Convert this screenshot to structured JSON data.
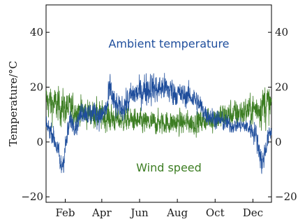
{
  "chart_data": {
    "type": "line",
    "title": "",
    "ylabel": "Temperature/°C",
    "xlabel": "",
    "ylim": [
      -22,
      50
    ],
    "xlim": [
      1,
      365
    ],
    "yticks": [
      -20,
      0,
      20,
      40
    ],
    "ytick_labels": [
      "−20",
      "0",
      "20",
      "40"
    ],
    "xticks": [
      {
        "label": "Feb",
        "day": 32
      },
      {
        "label": "Apr",
        "day": 91
      },
      {
        "label": "Jun",
        "day": 152
      },
      {
        "label": "Aug",
        "day": 213
      },
      {
        "label": "Oct",
        "day": 274
      },
      {
        "label": "Dec",
        "day": 335
      }
    ],
    "grid": false,
    "colors": {
      "ambient": "#1f4e9c",
      "wind": "#3c7d22",
      "axis": "#000000"
    },
    "annotations": [
      {
        "text": "Ambient temperature",
        "series": "ambient"
      },
      {
        "text": "Wind speed",
        "series": "wind"
      }
    ],
    "series": [
      {
        "key": "ambient",
        "x": [
          1,
          10,
          20,
          25,
          30,
          40,
          50,
          60,
          70,
          80,
          90,
          100,
          105,
          110,
          120,
          130,
          140,
          150,
          160,
          170,
          180,
          190,
          200,
          210,
          220,
          230,
          240,
          250,
          260,
          270,
          280,
          290,
          300,
          310,
          320,
          330,
          340,
          350,
          360,
          365
        ],
        "y": [
          6,
          4,
          -3,
          -10,
          -5,
          8,
          6,
          12,
          10,
          11,
          9,
          13,
          20,
          14,
          12,
          14,
          17,
          18,
          19,
          20,
          19,
          20,
          19,
          18,
          17,
          17,
          16,
          13,
          10,
          9,
          8,
          7,
          6,
          6,
          6,
          5,
          3,
          -8,
          2,
          4
        ],
        "noise": [
          3,
          4,
          5,
          7,
          6,
          4,
          4,
          5,
          5,
          5,
          5,
          6,
          8,
          6,
          5,
          6,
          6,
          6,
          7,
          7,
          6,
          6,
          6,
          6,
          5,
          5,
          5,
          5,
          4,
          4,
          4,
          4,
          3,
          3,
          3,
          4,
          5,
          6,
          4,
          3
        ]
      },
      {
        "key": "wind",
        "x": [
          1,
          20,
          40,
          60,
          80,
          100,
          120,
          140,
          160,
          180,
          200,
          220,
          240,
          260,
          280,
          300,
          320,
          340,
          355,
          365
        ],
        "y": [
          15,
          13,
          12,
          11,
          10,
          9,
          8,
          8,
          7,
          7,
          7,
          7,
          7,
          8,
          9,
          10,
          11,
          12,
          14,
          13
        ],
        "noise": [
          7,
          8,
          7,
          6,
          6,
          6,
          5,
          5,
          5,
          5,
          5,
          5,
          5,
          5,
          6,
          6,
          6,
          7,
          10,
          8
        ]
      }
    ]
  }
}
